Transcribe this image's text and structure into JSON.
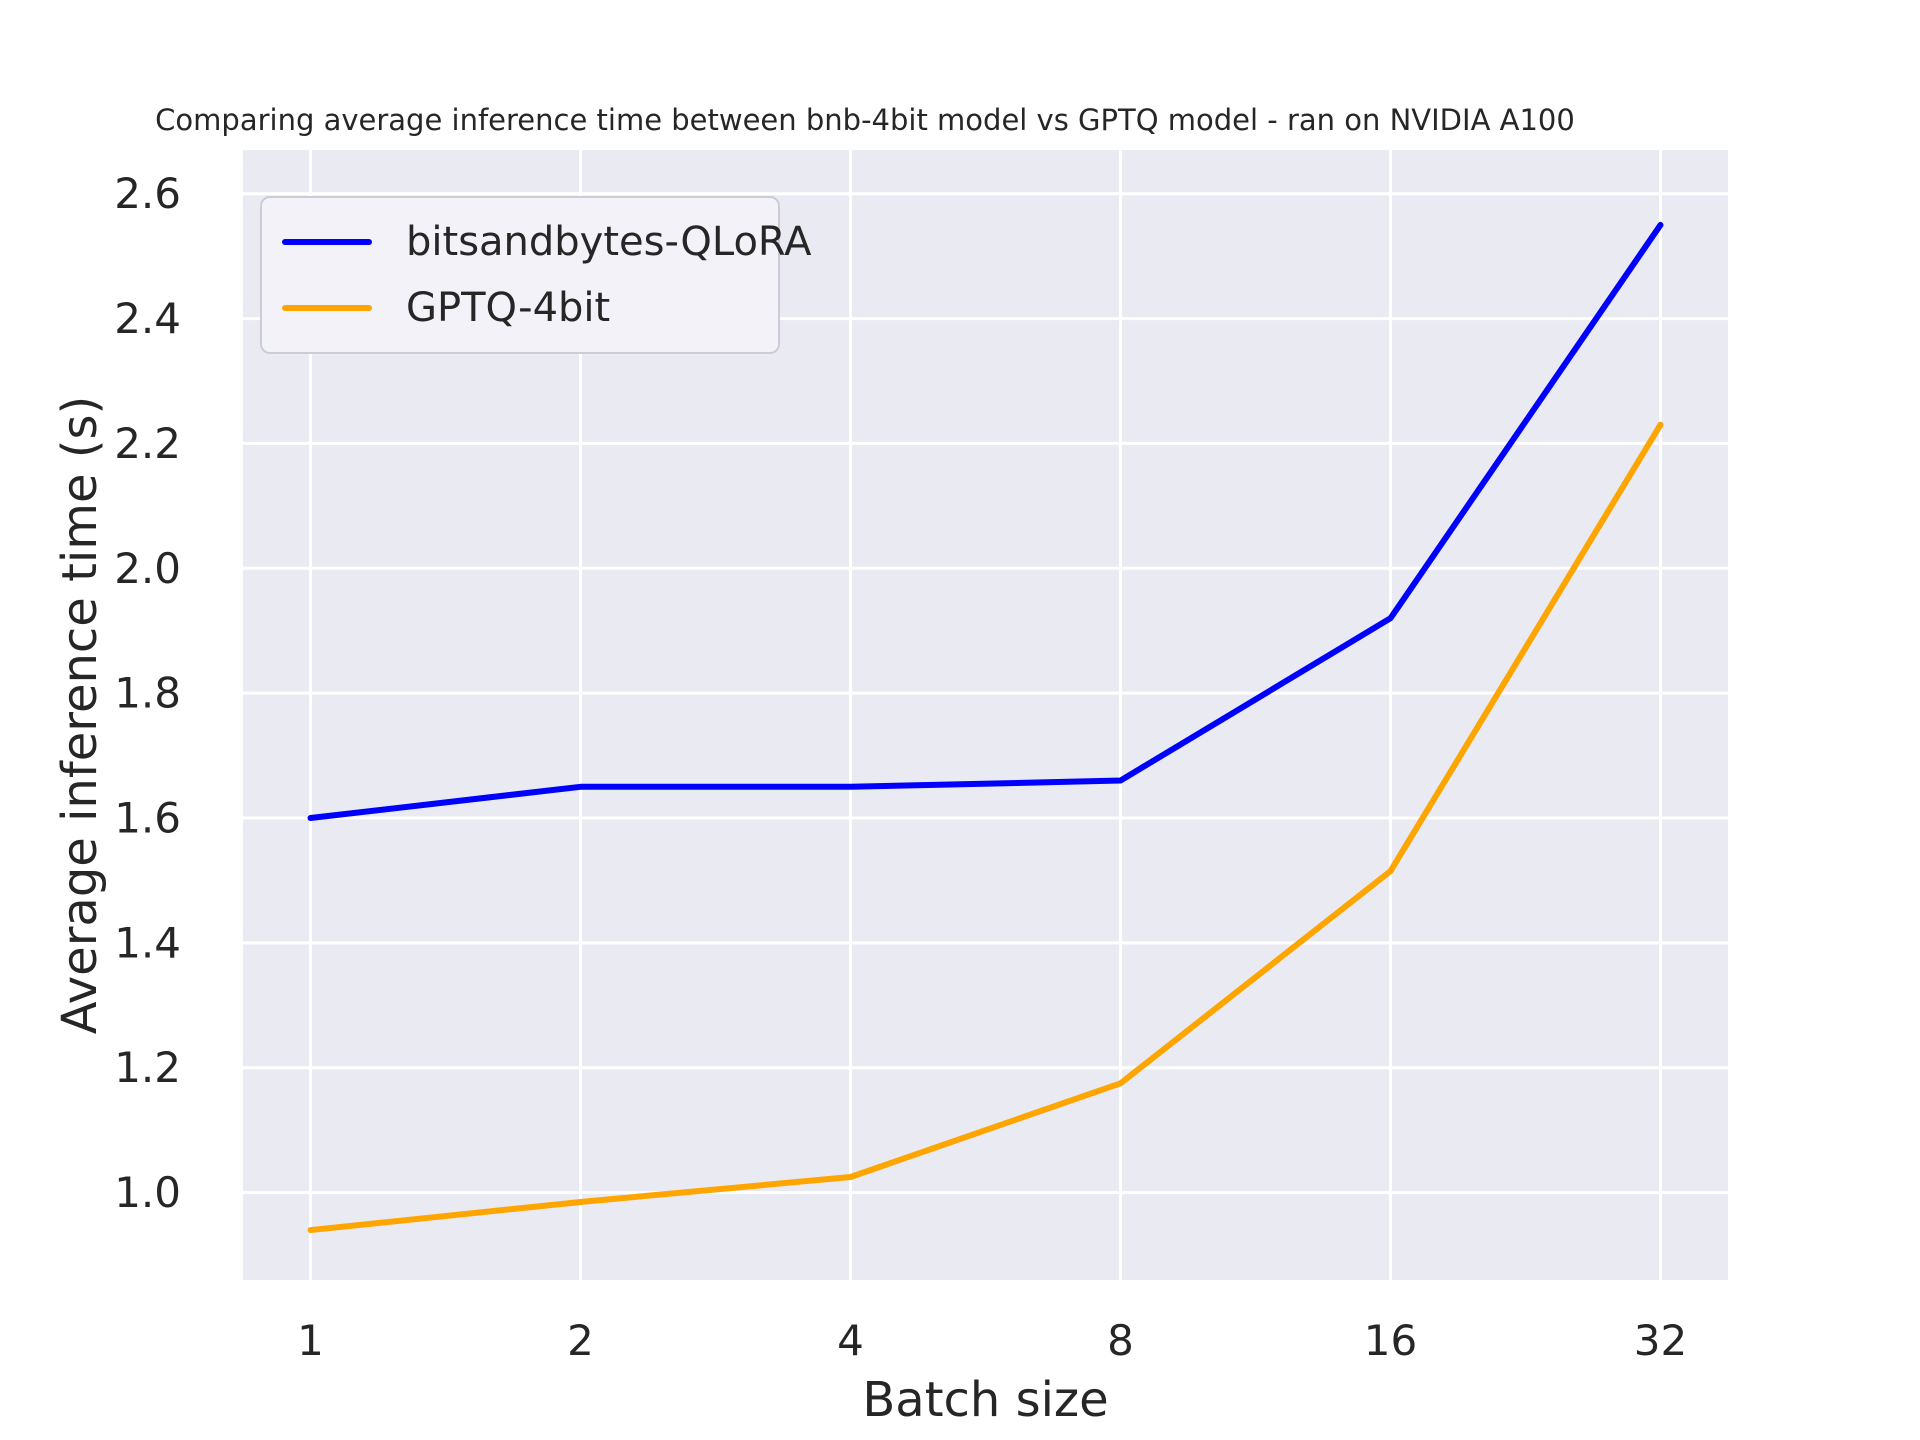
{
  "figure": {
    "title": "Comparing average inference time between bnb-4bit model vs GPTQ model - ran on NVIDIA A100"
  },
  "chart_data": {
    "type": "line",
    "title": "Comparing average inference time between bnb-4bit model vs GPTQ model - ran on NVIDIA A100",
    "xlabel": "Batch size",
    "ylabel": "Average inference time (s)",
    "x": [
      1,
      2,
      4,
      8,
      16,
      32
    ],
    "x_scale": "log2",
    "xtick_labels": [
      "1",
      "2",
      "4",
      "8",
      "16",
      "32"
    ],
    "series": [
      {
        "name": "bitsandbytes-QLoRA",
        "color": "#0000ff",
        "values": [
          1.6,
          1.65,
          1.65,
          1.66,
          1.92,
          2.55
        ]
      },
      {
        "name": "GPTQ-4bit",
        "color": "#ffa500",
        "values": [
          0.94,
          0.985,
          1.025,
          1.175,
          1.515,
          2.23
        ]
      }
    ],
    "yticks": [
      1.0,
      1.2,
      1.4,
      1.6,
      1.8,
      2.0,
      2.2,
      2.4,
      2.6
    ],
    "ytick_labels": [
      "1.0",
      "1.2",
      "1.4",
      "1.6",
      "1.8",
      "2.0",
      "2.2",
      "2.4",
      "2.6"
    ],
    "ylim": [
      0.86,
      2.67
    ],
    "xlim_log2": [
      -0.25,
      5.25
    ],
    "grid": true,
    "legend_position": "upper left",
    "plot_bg": "#eaeaf2",
    "grid_color": "#ffffff",
    "text_color": "#262626"
  }
}
